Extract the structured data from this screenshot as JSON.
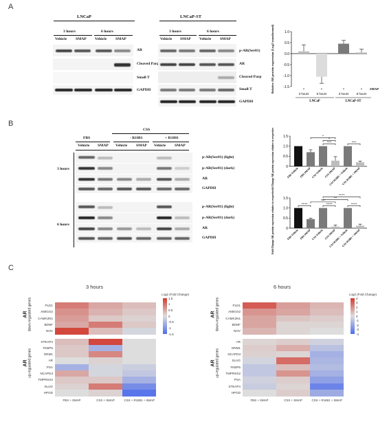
{
  "panels": {
    "a": "A",
    "b": "B",
    "c": "C"
  },
  "a": {
    "lncap": "LNCaP",
    "lncap_st": "LNCaP-ST",
    "time_3": "3 hours",
    "time_6": "6 hours",
    "vehicle": "Vehicle",
    "smap": "SMAP",
    "left_rows": [
      "AR",
      "Cleaved Parp",
      "Small T",
      "GAPDH"
    ],
    "right_rows": [
      "p-AR(Ser81)",
      "AR",
      "Cleaved Parp",
      "Small T",
      "GAPDH"
    ]
  },
  "b": {
    "fbs": "FBS",
    "css": "CSS",
    "minus_r1881": "- R1881",
    "plus_r1881": "+ R1881",
    "vehicle": "Vehicle",
    "smap": "SMAP",
    "time_3": "3 hours",
    "time_6": "6 hours",
    "rows_3h": [
      "p-AR(Ser81) (light)",
      "p-AR(Ser81) (dark)",
      "AR",
      "GAPDH"
    ],
    "rows_6h": [
      "p-AR(Ser81) (light)",
      "p-AR(Ser81) (dark)",
      "AR",
      "GAPDH"
    ]
  },
  "chart_data": [
    {
      "type": "bar",
      "id": "a-relative-ar",
      "ylabel": "Relative AR protein expression (Log2 transformed)",
      "ylim": [
        -1.5,
        1.0
      ],
      "yticks": [
        "1.0",
        "0.5",
        "0.0",
        "-0.5",
        "-1.0",
        "-1.5"
      ],
      "categories": [
        "3 hours",
        "6 hours",
        "3 hours",
        "6 hours"
      ],
      "groups": [
        "LNCaP",
        "LNCaP-ST"
      ],
      "row_marker": "SMAP",
      "values": [
        0.1,
        -1.05,
        0.45,
        0.05
      ],
      "errors": [
        0.3,
        0.3,
        0.15,
        0.15
      ],
      "colors": [
        "#bdbdbd",
        "#dcdcdc",
        "#7a7a7a",
        "#bdbdbd"
      ]
    },
    {
      "type": "bar",
      "id": "b-3h",
      "ylabel": "Fold Change AR protein expression relative to respective Vehicle control",
      "ylim": [
        0,
        1.5
      ],
      "yticks": [
        "1.5",
        "1.0",
        "0.5",
        "0"
      ],
      "categories": [
        "FBS Vehicle",
        "FBS SMAP",
        "CSS Vehicle",
        "CSS SMAP",
        "CSS R1881 + Vehicle",
        "CSS R1881 + SMAP"
      ],
      "values": [
        1.0,
        0.7,
        1.0,
        0.28,
        1.0,
        0.2
      ],
      "errors": [
        0.0,
        0.12,
        0.0,
        0.2,
        0.0,
        0.06
      ],
      "colors": [
        "#111111",
        "#7a7a7a",
        "#7a7a7a",
        "#bdbdbd",
        "#7a7a7a",
        "#bdbdbd"
      ],
      "annotations": [
        "*",
        "*",
        "***",
        "***"
      ]
    },
    {
      "type": "bar",
      "id": "b-6h",
      "ylabel": "Fold Change AR protein expression relative to respective Vehicle control",
      "ylim": [
        0,
        1.5
      ],
      "yticks": [
        "1.5",
        "1.0",
        "0.5",
        "0"
      ],
      "categories": [
        "FBS Vehicle",
        "FBS SMAP",
        "CSS Vehicle",
        "CSS SMAP",
        "CSS R1881 + Vehicle",
        "CSS R1881 + SMAP"
      ],
      "values": [
        1.0,
        0.45,
        1.0,
        0.08,
        1.0,
        0.12
      ],
      "errors": [
        0.0,
        0.05,
        0.0,
        0.08,
        0.0,
        0.08
      ],
      "colors": [
        "#111111",
        "#7a7a7a",
        "#7a7a7a",
        "#bdbdbd",
        "#7a7a7a",
        "#bdbdbd"
      ],
      "annotations": [
        "****",
        "****",
        "***",
        "**",
        "****",
        "****"
      ]
    },
    {
      "type": "heatmap",
      "id": "c-3h",
      "title": "3 hours",
      "colorbar_label": "Log2 (Fold Change)",
      "colorbar_ticks": [
        "1.5",
        "1",
        "0.5",
        "0",
        "-0.5",
        "-1",
        "-1.5"
      ],
      "vmin": -1.5,
      "vmax": 1.5,
      "columns": [
        "FBS + SMAP",
        "CSS + SMAP",
        "CSS + R1881 + SMAP"
      ],
      "groups": [
        {
          "label": [
            "AR",
            "down-regulated genes"
          ],
          "rows": [
            "PLD1",
            "AMIGO2",
            "CAMK2N1",
            "BDNF",
            "NOV"
          ],
          "values": [
            [
              0.9,
              0.5,
              0.3
            ],
            [
              0.7,
              0.4,
              0.2
            ],
            [
              0.6,
              0.2,
              0.1
            ],
            [
              0.5,
              0.9,
              0.2
            ],
            [
              1.4,
              0.3,
              -0.1
            ]
          ]
        },
        {
          "label": [
            "AR",
            "up-regulated genes"
          ],
          "rows": [
            "STEAP4",
            "FKBP5",
            "ORM1",
            "AR",
            "PSA",
            "NCAPD3",
            "TMPRSS2",
            "SLUG",
            "HPGD"
          ],
          "values": [
            [
              0.3,
              1.4,
              0.0
            ],
            [
              0.2,
              -0.6,
              0.0
            ],
            [
              0.2,
              0.8,
              0.0
            ],
            [
              0.0,
              0.1,
              0.0
            ],
            [
              -0.6,
              -0.1,
              -0.2
            ],
            [
              0.5,
              -0.1,
              -0.3
            ],
            [
              0.2,
              0.2,
              -0.6
            ],
            [
              0.1,
              0.9,
              -1.1
            ],
            [
              0.0,
              0.1,
              -1.4
            ]
          ]
        }
      ]
    },
    {
      "type": "heatmap",
      "id": "c-6h",
      "title": "6 hours",
      "colorbar_label": "Log2 (Fold Change)",
      "colorbar_ticks": [
        "4",
        "3",
        "2",
        "1",
        "0",
        "-1",
        "-2",
        "-3",
        "-4"
      ],
      "vmin": -4,
      "vmax": 4,
      "columns": [
        "FBS + SMAP",
        "CSS + SMAP",
        "CSS + R1881 + SMAP"
      ],
      "groups": [
        {
          "label": [
            "AR",
            "down-regulated genes"
          ],
          "rows": [
            "PLD1",
            "AMIGO2",
            "CAMK2N1",
            "BDNF",
            "NOV"
          ],
          "values": [
            [
              3.2,
              1.6,
              1.0
            ],
            [
              1.8,
              1.4,
              0.8
            ],
            [
              1.4,
              0.6,
              0.4
            ],
            [
              1.4,
              0.2,
              0.2
            ],
            [
              1.0,
              0.2,
              0.0
            ]
          ]
        },
        {
          "label": [
            "AR",
            "up-regulated genes"
          ],
          "rows": [
            "AR",
            "ORM1",
            "NCAPD3",
            "SLUG",
            "FKBP5",
            "TMPRSS2",
            "PSA",
            "STEAP4",
            "HPGD"
          ],
          "values": [
            [
              0.2,
              0.4,
              -0.4
            ],
            [
              0.4,
              1.2,
              -1.0
            ],
            [
              0.3,
              0.2,
              -1.6
            ],
            [
              -0.3,
              2.8,
              -1.4
            ],
            [
              -0.8,
              0.8,
              -1.2
            ],
            [
              -0.8,
              1.8,
              -1.6
            ],
            [
              -0.4,
              0.4,
              -2.2
            ],
            [
              -0.6,
              0.2,
              -3.2
            ],
            [
              0.0,
              0.4,
              -1.8
            ]
          ]
        }
      ]
    }
  ]
}
